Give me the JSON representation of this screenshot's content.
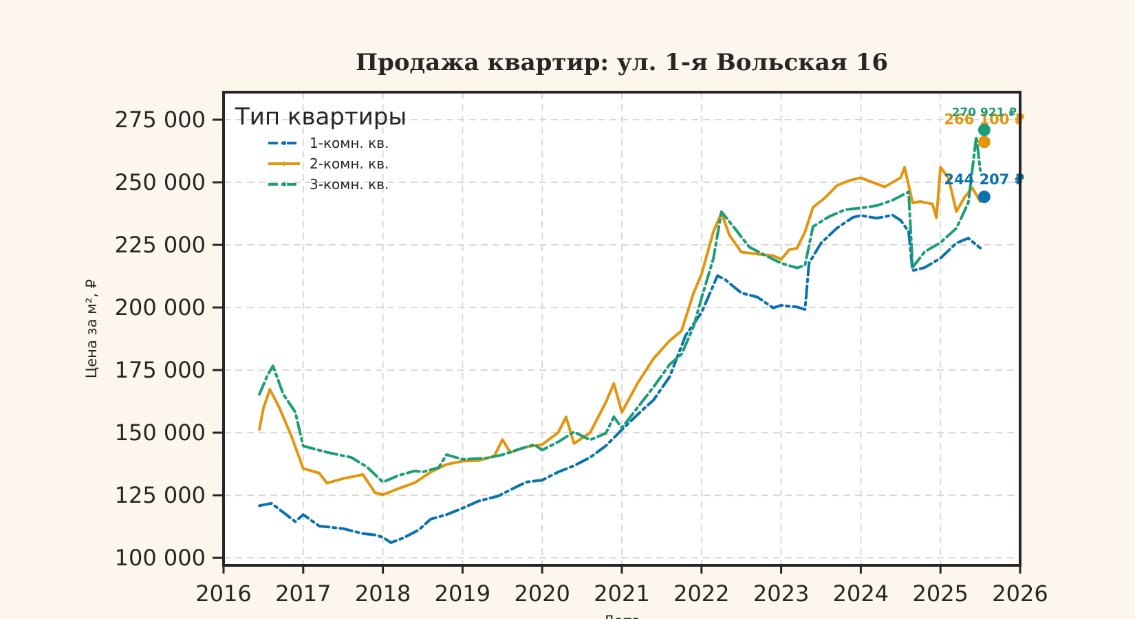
{
  "chart_data": {
    "type": "line",
    "title": "Продажа квартир: ул. 1-я Вольская 16",
    "xlabel": "Дата",
    "ylabel": "Цена за м², ₽",
    "xlim": [
      2016,
      2026
    ],
    "ylim": [
      97000,
      286000
    ],
    "x_ticks": [
      "2016",
      "2017",
      "2018",
      "2019",
      "2020",
      "2021",
      "2022",
      "2023",
      "2024",
      "2025",
      "2026"
    ],
    "y_ticks": [
      {
        "value": 100000,
        "label": "100 000"
      },
      {
        "value": 125000,
        "label": "125 000"
      },
      {
        "value": 150000,
        "label": "150 000"
      },
      {
        "value": 175000,
        "label": "175 000"
      },
      {
        "value": 200000,
        "label": "200 000"
      },
      {
        "value": 225000,
        "label": "225 000"
      },
      {
        "value": 250000,
        "label": "250 000"
      },
      {
        "value": 275000,
        "label": "275 000"
      }
    ],
    "grid": true,
    "legend": {
      "title": "Тип квартиры",
      "placement": "top-left"
    },
    "series": [
      {
        "name": "1-комн. кв.",
        "color": "#0a72b1",
        "style": "dashdot",
        "x": [
          2016.45,
          2016.6,
          2016.75,
          2016.9,
          2017.0,
          2017.2,
          2017.5,
          2017.75,
          2017.9,
          2018.0,
          2018.1,
          2018.25,
          2018.45,
          2018.6,
          2018.8,
          2019.0,
          2019.2,
          2019.45,
          2019.6,
          2019.8,
          2020.0,
          2020.2,
          2020.4,
          2020.6,
          2020.8,
          2021.0,
          2021.2,
          2021.4,
          2021.6,
          2021.8,
          2022.0,
          2022.1,
          2022.2,
          2022.3,
          2022.5,
          2022.7,
          2022.9,
          2023.0,
          2023.2,
          2023.3,
          2023.35,
          2023.5,
          2023.7,
          2023.9,
          2024.0,
          2024.2,
          2024.4,
          2024.5,
          2024.6,
          2024.65,
          2024.8,
          2025.0,
          2025.2,
          2025.35,
          2025.5
        ],
        "y": [
          120500,
          121500,
          118000,
          114500,
          117500,
          113000,
          111500,
          110000,
          109500,
          108000,
          106000,
          108000,
          111000,
          115500,
          117000,
          119500,
          122500,
          125000,
          127500,
          130500,
          131000,
          134000,
          136500,
          140000,
          145000,
          151500,
          157500,
          163000,
          172000,
          188500,
          198000,
          205000,
          213000,
          211000,
          206000,
          204500,
          200000,
          201000,
          200500,
          199000,
          218000,
          226000,
          232000,
          236000,
          237000,
          236000,
          237000,
          235000,
          230000,
          215000,
          216000,
          220000,
          226000,
          228000,
          224000
        ]
      },
      {
        "name": "2-комн. кв.",
        "color": "#e2960f",
        "style": "solid",
        "x": [
          2016.45,
          2016.5,
          2016.58,
          2016.7,
          2016.85,
          2017.0,
          2017.2,
          2017.3,
          2017.5,
          2017.75,
          2017.9,
          2018.0,
          2018.2,
          2018.4,
          2018.6,
          2018.8,
          2019.0,
          2019.2,
          2019.4,
          2019.5,
          2019.6,
          2019.8,
          2020.0,
          2020.2,
          2020.3,
          2020.4,
          2020.6,
          2020.8,
          2020.9,
          2021.0,
          2021.2,
          2021.4,
          2021.6,
          2021.75,
          2021.9,
          2022.0,
          2022.15,
          2022.25,
          2022.35,
          2022.5,
          2022.7,
          2022.9,
          2023.0,
          2023.1,
          2023.2,
          2023.3,
          2023.4,
          2023.55,
          2023.7,
          2023.85,
          2024.0,
          2024.15,
          2024.3,
          2024.5,
          2024.55,
          2024.65,
          2024.75,
          2024.9,
          2024.95,
          2025.0,
          2025.1,
          2025.2,
          2025.3,
          2025.4,
          2025.5
        ],
        "y": [
          151000,
          160000,
          167000,
          160000,
          149000,
          136000,
          134000,
          130000,
          132000,
          133000,
          126000,
          125500,
          128000,
          130000,
          134000,
          137000,
          138500,
          139000,
          141000,
          147000,
          142000,
          144000,
          145000,
          150000,
          156000,
          146000,
          150000,
          162000,
          170000,
          158000,
          170000,
          180000,
          187000,
          191000,
          206000,
          213000,
          230000,
          238000,
          229000,
          222000,
          221500,
          221000,
          219000,
          223000,
          224000,
          230000,
          240000,
          244000,
          249000,
          251000,
          252000,
          250000,
          248000,
          252000,
          256000,
          242000,
          242000,
          241000,
          236000,
          256000,
          252000,
          238000,
          244000,
          248000,
          242000
        ]
      },
      {
        "name": "3-комн. кв.",
        "color": "#1b9e77",
        "style": "dashdot",
        "x": [
          2016.45,
          2016.55,
          2016.62,
          2016.75,
          2016.9,
          2017.0,
          2017.3,
          2017.6,
          2017.8,
          2018.0,
          2018.2,
          2018.4,
          2018.5,
          2018.7,
          2018.8,
          2019.0,
          2019.3,
          2019.5,
          2019.7,
          2019.9,
          2020.0,
          2020.2,
          2020.4,
          2020.6,
          2020.8,
          2020.9,
          2021.0,
          2021.2,
          2021.4,
          2021.6,
          2021.75,
          2021.9,
          2022.0,
          2022.15,
          2022.25,
          2022.4,
          2022.6,
          2022.8,
          2023.0,
          2023.2,
          2023.3,
          2023.4,
          2023.6,
          2023.8,
          2024.0,
          2024.2,
          2024.4,
          2024.6,
          2024.65,
          2024.8,
          2025.0,
          2025.2,
          2025.35,
          2025.45,
          2025.5
        ],
        "y": [
          165000,
          173000,
          176500,
          165000,
          158000,
          145000,
          142000,
          140000,
          136000,
          130000,
          133000,
          135000,
          134000,
          136000,
          141000,
          139000,
          140000,
          141000,
          143000,
          145000,
          143000,
          146000,
          150000,
          147000,
          150000,
          156000,
          152000,
          160000,
          168000,
          177000,
          181000,
          192000,
          204000,
          220000,
          238000,
          232000,
          224000,
          221000,
          218000,
          216000,
          217000,
          232000,
          236000,
          239000,
          240000,
          241000,
          243000,
          246000,
          216000,
          222000,
          226000,
          232000,
          242000,
          268000,
          255000
        ]
      }
    ],
    "end_points": [
      {
        "series": "1-комн. кв.",
        "x": 2025.55,
        "y": 244207,
        "label": "244 207 ₽",
        "color": "#0a72b1"
      },
      {
        "series": "2-комн. кв.",
        "x": 2025.55,
        "y": 266100,
        "label": "266 100 ₽",
        "color": "#e2960f"
      },
      {
        "series": "3-комн. кв.",
        "x": 2025.55,
        "y": 270921,
        "label": "270 921 ₽",
        "color": "#1b9e77"
      }
    ]
  }
}
